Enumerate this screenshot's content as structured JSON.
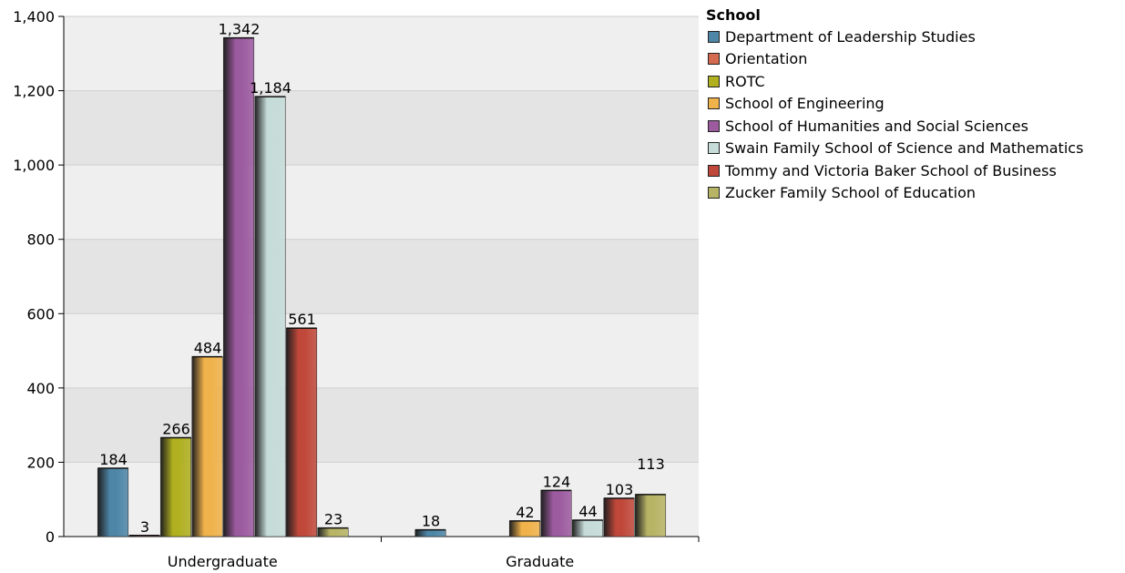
{
  "chart_data": {
    "type": "bar",
    "categories": [
      "Undergraduate",
      "Graduate"
    ],
    "ylim": [
      0,
      1400
    ],
    "yticks": [
      0,
      200,
      400,
      600,
      800,
      1000,
      1200,
      1400
    ],
    "ytick_labels": [
      "0",
      "200",
      "400",
      "600",
      "800",
      "1,000",
      "1,200",
      "1,400"
    ],
    "grid": true,
    "legend_position": "right",
    "legend_title": "School",
    "series": [
      {
        "name": "Department of Leadership Studies",
        "color": "#4d86a7",
        "values": [
          184,
          18
        ],
        "labels": [
          "184",
          "18"
        ]
      },
      {
        "name": "Orientation",
        "color": "#d46a4f",
        "values": [
          3,
          null
        ],
        "labels": [
          "3",
          ""
        ]
      },
      {
        "name": "ROTC",
        "color": "#b0b020",
        "values": [
          266,
          null
        ],
        "labels": [
          "266",
          ""
        ]
      },
      {
        "name": "School of Engineering",
        "color": "#f0b24a",
        "values": [
          484,
          42
        ],
        "labels": [
          "484",
          "42"
        ]
      },
      {
        "name": "School of Humanities and Social Sciences",
        "color": "#9c5a9f",
        "values": [
          1342,
          124
        ],
        "labels": [
          "1,342",
          "124"
        ]
      },
      {
        "name": "Swain Family School of Science and Mathematics",
        "color": "#c5dcd8",
        "values": [
          1184,
          44
        ],
        "labels": [
          "1,184",
          "44"
        ]
      },
      {
        "name": "Tommy and Victoria Baker School of Business",
        "color": "#c0483a",
        "values": [
          561,
          103
        ],
        "labels": [
          "561",
          "103"
        ]
      },
      {
        "name": "Zucker Family School of Education",
        "color": "#b8b466",
        "values": [
          23,
          113
        ],
        "labels": [
          "23",
          "113"
        ]
      }
    ]
  }
}
